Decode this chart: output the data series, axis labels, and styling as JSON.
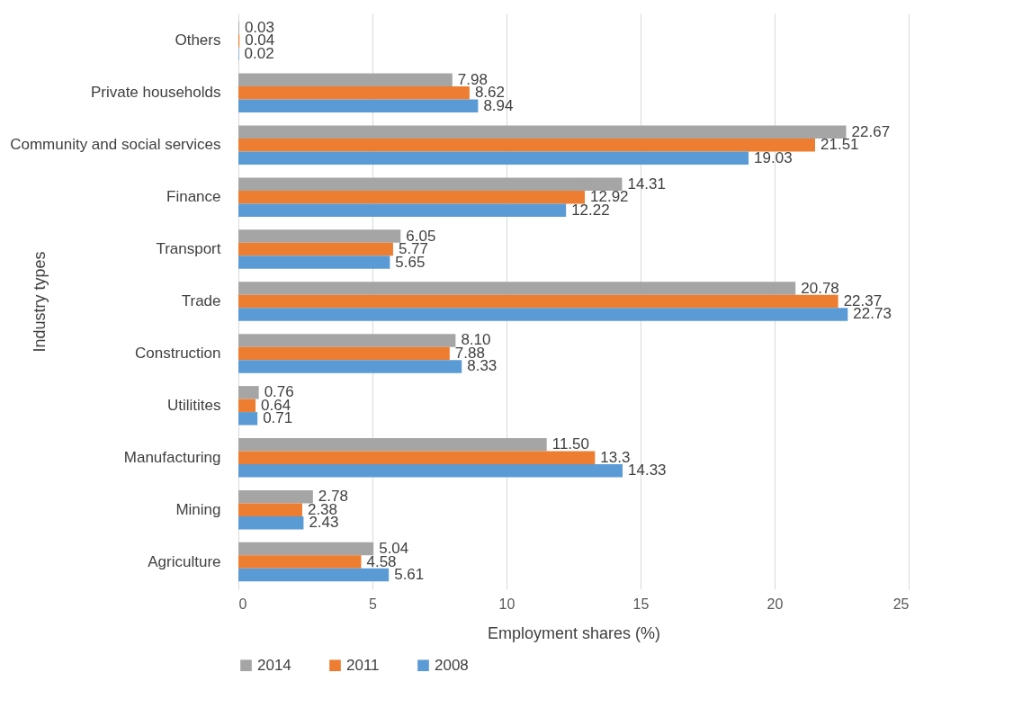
{
  "chart_data": {
    "type": "bar",
    "orientation": "horizontal",
    "xlabel": "Employment shares (%)",
    "ylabel": "Industry types",
    "categories": [
      "Others",
      "Private households",
      "Community and social services",
      "Finance",
      "Transport",
      "Trade",
      "Construction",
      "Utilitites",
      "Manufacturing",
      "Mining",
      "Agriculture"
    ],
    "series": [
      {
        "name": "2014",
        "color": "#a5a5a5",
        "values": [
          0.03,
          7.98,
          22.67,
          14.31,
          6.05,
          20.78,
          8.1,
          0.76,
          11.5,
          2.78,
          5.04
        ],
        "value_labels": [
          "0.03",
          "7.98",
          "22.67",
          "14.31",
          "6.05",
          "20.78",
          "8.10",
          "0.76",
          "11.50",
          "2.78",
          "5.04"
        ]
      },
      {
        "name": "2011",
        "color": "#ed7d31",
        "values": [
          0.04,
          8.62,
          21.51,
          12.92,
          5.77,
          22.37,
          7.88,
          0.64,
          13.3,
          2.38,
          4.58
        ],
        "value_labels": [
          "0.04",
          "8.62",
          "21.51",
          "12.92",
          "5.77",
          "22.37",
          "7.88",
          "0.64",
          "13.3",
          "2.38",
          "4.58"
        ]
      },
      {
        "name": "2008",
        "color": "#5b9bd5",
        "values": [
          0.02,
          8.94,
          19.03,
          12.22,
          5.65,
          22.73,
          8.33,
          0.71,
          14.33,
          2.43,
          5.61
        ],
        "value_labels": [
          "0.02",
          "8.94",
          "19.03",
          "12.22",
          "5.65",
          "22.73",
          "8.33",
          "0.71",
          "14.33",
          "2.43",
          "5.61"
        ]
      }
    ],
    "xlim": [
      0,
      25
    ],
    "xticks": [
      0,
      5,
      10,
      15,
      20,
      25
    ],
    "grid": "x",
    "legend": "bottom left"
  }
}
